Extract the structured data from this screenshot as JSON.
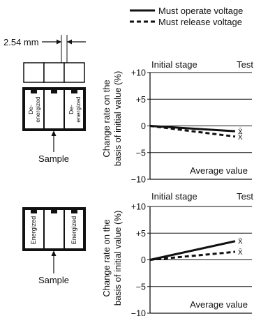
{
  "legend": {
    "operate": "Must operate voltage",
    "release": "Must release voltage"
  },
  "pitch_label": "2.54 mm",
  "sample_label": "Sample",
  "relay_labels": {
    "top_left": "De-\nenergized",
    "top_right": "De-\nenergized",
    "bottom_left": "Energized",
    "bottom_right": "Energized"
  },
  "y_axis_label": {
    "line1": "Change rate on the",
    "line2": "basis of initial value (%)"
  },
  "chart_data": [
    {
      "type": "line",
      "title_left": "Initial stage",
      "title_right": "Test",
      "annotation": "Average value",
      "ylabel": "Change rate on the basis of initial value (%)",
      "ylim": [
        -10,
        10
      ],
      "yticks": [
        "+10",
        "+5",
        "0",
        "−5",
        "−10"
      ],
      "x": [
        0,
        1
      ],
      "series": [
        {
          "name": "Must operate voltage",
          "style": "solid",
          "values": [
            0,
            -1.0
          ],
          "marker": "X̄"
        },
        {
          "name": "Must release voltage",
          "style": "dashed",
          "values": [
            0,
            -2.0
          ],
          "marker": "X̄"
        }
      ]
    },
    {
      "type": "line",
      "title_left": "Initial stage",
      "title_right": "Test",
      "annotation": "Average value",
      "ylabel": "Change rate on the basis of initial value (%)",
      "ylim": [
        -10,
        10
      ],
      "yticks": [
        "+10",
        "+5",
        "0",
        "−5",
        "−10"
      ],
      "x": [
        0,
        1
      ],
      "series": [
        {
          "name": "Must operate voltage",
          "style": "solid",
          "values": [
            0,
            3.5
          ],
          "marker": "X̄"
        },
        {
          "name": "Must release voltage",
          "style": "dashed",
          "values": [
            0,
            1.5
          ],
          "marker": "X̄"
        }
      ]
    }
  ]
}
